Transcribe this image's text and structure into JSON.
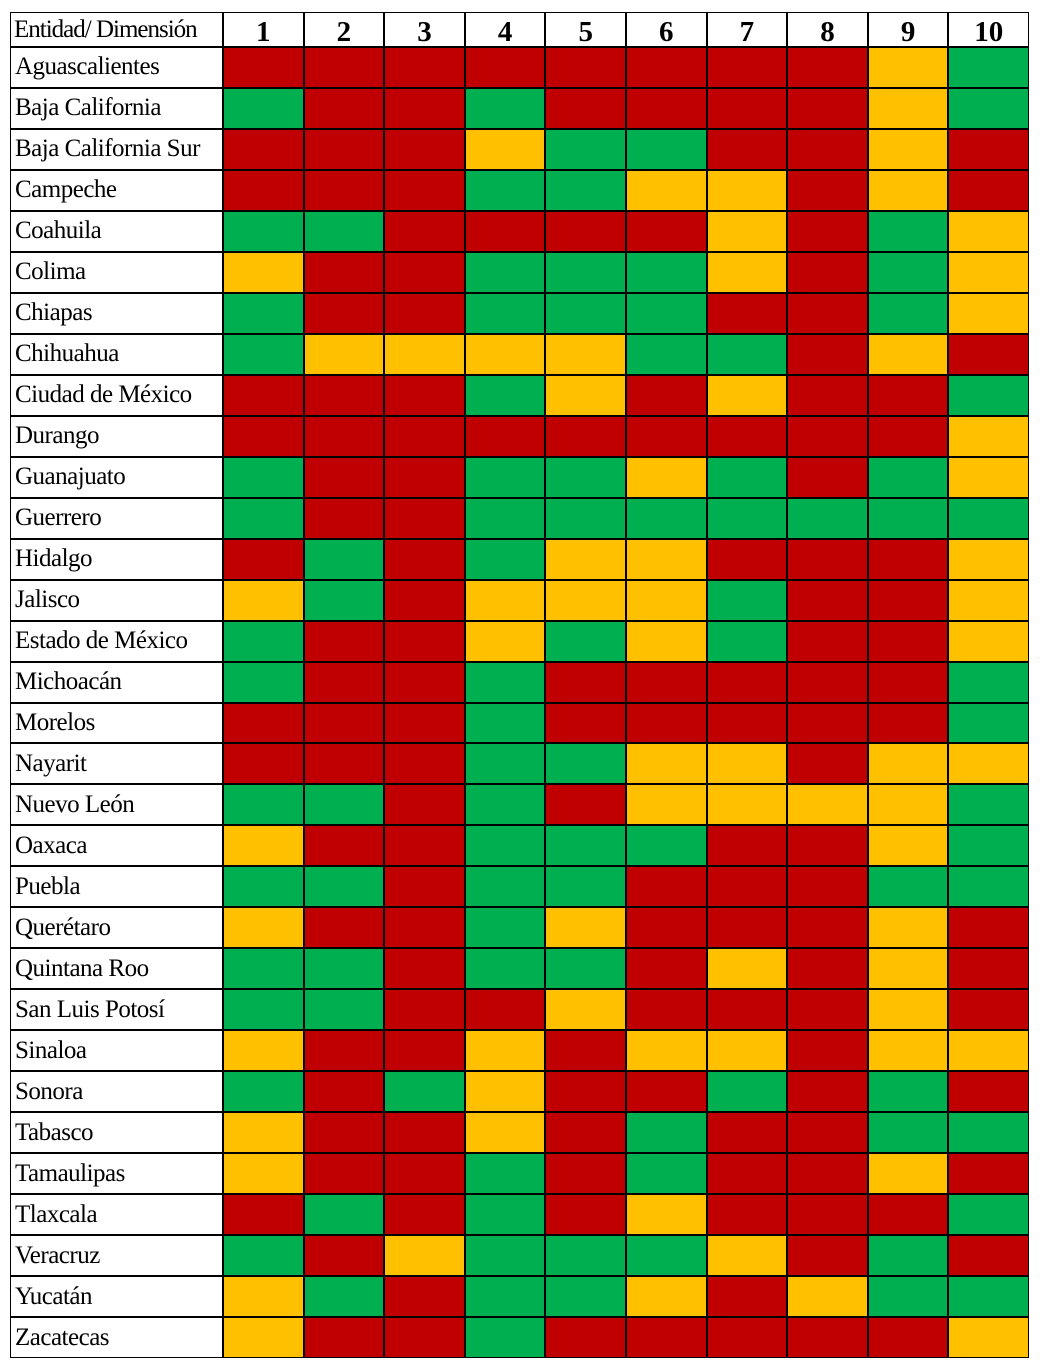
{
  "table": {
    "header": [
      "Entidad/ Dimensión",
      "1",
      "2",
      "3",
      "4",
      "5",
      "6",
      "7",
      "8",
      "9",
      "10"
    ],
    "rows": [
      {
        "name": "Aguascalientes",
        "cells": [
          "#c00000",
          "#c00000",
          "#c00000",
          "#c00000",
          "#c00000",
          "#c00000",
          "#c00000",
          "#c00000",
          "#ffc000",
          "#00b050"
        ]
      },
      {
        "name": "Baja California",
        "cells": [
          "#00b050",
          "#c00000",
          "#c00000",
          "#00b050",
          "#c00000",
          "#c00000",
          "#c00000",
          "#c00000",
          "#ffc000",
          "#00b050"
        ]
      },
      {
        "name": "Baja California Sur",
        "cells": [
          "#c00000",
          "#c00000",
          "#c00000",
          "#ffc000",
          "#00b050",
          "#00b050",
          "#c00000",
          "#c00000",
          "#ffc000",
          "#c00000"
        ]
      },
      {
        "name": "Campeche",
        "cells": [
          "#c00000",
          "#c00000",
          "#c00000",
          "#00b050",
          "#00b050",
          "#ffc000",
          "#ffc000",
          "#c00000",
          "#ffc000",
          "#c00000"
        ]
      },
      {
        "name": "Coahuila",
        "cells": [
          "#00b050",
          "#00b050",
          "#c00000",
          "#c00000",
          "#c00000",
          "#c00000",
          "#ffc000",
          "#c00000",
          "#00b050",
          "#ffc000"
        ]
      },
      {
        "name": "Colima",
        "cells": [
          "#ffc000",
          "#c00000",
          "#c00000",
          "#00b050",
          "#00b050",
          "#00b050",
          "#ffc000",
          "#c00000",
          "#00b050",
          "#ffc000"
        ]
      },
      {
        "name": "Chiapas",
        "cells": [
          "#00b050",
          "#c00000",
          "#c00000",
          "#00b050",
          "#00b050",
          "#00b050",
          "#c00000",
          "#c00000",
          "#00b050",
          "#ffc000"
        ]
      },
      {
        "name": "Chihuahua",
        "cells": [
          "#00b050",
          "#ffc000",
          "#ffc000",
          "#ffc000",
          "#ffc000",
          "#00b050",
          "#00b050",
          "#c00000",
          "#ffc000",
          "#c00000"
        ]
      },
      {
        "name": "Ciudad de México",
        "cells": [
          "#c00000",
          "#c00000",
          "#c00000",
          "#00b050",
          "#ffc000",
          "#c00000",
          "#ffc000",
          "#c00000",
          "#c00000",
          "#00b050"
        ]
      },
      {
        "name": "Durango",
        "cells": [
          "#c00000",
          "#c00000",
          "#c00000",
          "#c00000",
          "#c00000",
          "#c00000",
          "#c00000",
          "#c00000",
          "#c00000",
          "#ffc000"
        ]
      },
      {
        "name": "Guanajuato",
        "cells": [
          "#00b050",
          "#c00000",
          "#c00000",
          "#00b050",
          "#00b050",
          "#ffc000",
          "#00b050",
          "#c00000",
          "#00b050",
          "#ffc000"
        ]
      },
      {
        "name": "Guerrero",
        "cells": [
          "#00b050",
          "#c00000",
          "#c00000",
          "#00b050",
          "#00b050",
          "#00b050",
          "#00b050",
          "#00b050",
          "#00b050",
          "#00b050"
        ]
      },
      {
        "name": "Hidalgo",
        "cells": [
          "#c00000",
          "#00b050",
          "#c00000",
          "#00b050",
          "#ffc000",
          "#ffc000",
          "#c00000",
          "#c00000",
          "#c00000",
          "#ffc000"
        ]
      },
      {
        "name": "Jalisco",
        "cells": [
          "#ffc000",
          "#00b050",
          "#c00000",
          "#ffc000",
          "#ffc000",
          "#ffc000",
          "#00b050",
          "#c00000",
          "#c00000",
          "#ffc000"
        ]
      },
      {
        "name": "Estado de México",
        "cells": [
          "#00b050",
          "#c00000",
          "#c00000",
          "#ffc000",
          "#00b050",
          "#ffc000",
          "#00b050",
          "#c00000",
          "#c00000",
          "#ffc000"
        ]
      },
      {
        "name": "Michoacán",
        "cells": [
          "#00b050",
          "#c00000",
          "#c00000",
          "#00b050",
          "#c00000",
          "#c00000",
          "#c00000",
          "#c00000",
          "#c00000",
          "#00b050"
        ]
      },
      {
        "name": "Morelos",
        "cells": [
          "#c00000",
          "#c00000",
          "#c00000",
          "#00b050",
          "#c00000",
          "#c00000",
          "#c00000",
          "#c00000",
          "#c00000",
          "#00b050"
        ]
      },
      {
        "name": "Nayarit",
        "cells": [
          "#c00000",
          "#c00000",
          "#c00000",
          "#00b050",
          "#00b050",
          "#ffc000",
          "#ffc000",
          "#c00000",
          "#ffc000",
          "#ffc000"
        ]
      },
      {
        "name": "Nuevo León",
        "cells": [
          "#00b050",
          "#00b050",
          "#c00000",
          "#00b050",
          "#c00000",
          "#ffc000",
          "#ffc000",
          "#ffc000",
          "#ffc000",
          "#00b050"
        ]
      },
      {
        "name": "Oaxaca",
        "cells": [
          "#ffc000",
          "#c00000",
          "#c00000",
          "#00b050",
          "#00b050",
          "#00b050",
          "#c00000",
          "#c00000",
          "#ffc000",
          "#00b050"
        ]
      },
      {
        "name": "Puebla",
        "cells": [
          "#00b050",
          "#00b050",
          "#c00000",
          "#00b050",
          "#00b050",
          "#c00000",
          "#c00000",
          "#c00000",
          "#00b050",
          "#00b050"
        ]
      },
      {
        "name": "Querétaro",
        "cells": [
          "#ffc000",
          "#c00000",
          "#c00000",
          "#00b050",
          "#ffc000",
          "#c00000",
          "#c00000",
          "#c00000",
          "#ffc000",
          "#c00000"
        ]
      },
      {
        "name": "Quintana Roo",
        "cells": [
          "#00b050",
          "#00b050",
          "#c00000",
          "#00b050",
          "#00b050",
          "#c00000",
          "#ffc000",
          "#c00000",
          "#ffc000",
          "#c00000"
        ]
      },
      {
        "name": "San Luis Potosí",
        "cells": [
          "#00b050",
          "#00b050",
          "#c00000",
          "#c00000",
          "#ffc000",
          "#c00000",
          "#c00000",
          "#c00000",
          "#ffc000",
          "#c00000"
        ]
      },
      {
        "name": "Sinaloa",
        "cells": [
          "#ffc000",
          "#c00000",
          "#c00000",
          "#ffc000",
          "#c00000",
          "#ffc000",
          "#ffc000",
          "#c00000",
          "#ffc000",
          "#ffc000"
        ]
      },
      {
        "name": "Sonora",
        "cells": [
          "#00b050",
          "#c00000",
          "#00b050",
          "#ffc000",
          "#c00000",
          "#c00000",
          "#00b050",
          "#c00000",
          "#00b050",
          "#c00000"
        ]
      },
      {
        "name": "Tabasco",
        "cells": [
          "#ffc000",
          "#c00000",
          "#c00000",
          "#ffc000",
          "#c00000",
          "#00b050",
          "#c00000",
          "#c00000",
          "#00b050",
          "#00b050"
        ]
      },
      {
        "name": "Tamaulipas",
        "cells": [
          "#ffc000",
          "#c00000",
          "#c00000",
          "#00b050",
          "#c00000",
          "#00b050",
          "#c00000",
          "#c00000",
          "#ffc000",
          "#c00000"
        ]
      },
      {
        "name": "Tlaxcala",
        "cells": [
          "#c00000",
          "#00b050",
          "#c00000",
          "#00b050",
          "#c00000",
          "#ffc000",
          "#c00000",
          "#c00000",
          "#c00000",
          "#00b050"
        ]
      },
      {
        "name": "Veracruz",
        "cells": [
          "#00b050",
          "#c00000",
          "#ffc000",
          "#00b050",
          "#00b050",
          "#00b050",
          "#ffc000",
          "#c00000",
          "#00b050",
          "#c00000"
        ]
      },
      {
        "name": "Yucatán",
        "cells": [
          "#ffc000",
          "#00b050",
          "#c00000",
          "#00b050",
          "#00b050",
          "#ffc000",
          "#c00000",
          "#ffc000",
          "#00b050",
          "#00b050"
        ]
      },
      {
        "name": "Zacatecas",
        "cells": [
          "#ffc000",
          "#c00000",
          "#c00000",
          "#00b050",
          "#c00000",
          "#c00000",
          "#c00000",
          "#c00000",
          "#c00000",
          "#ffc000"
        ]
      }
    ]
  }
}
